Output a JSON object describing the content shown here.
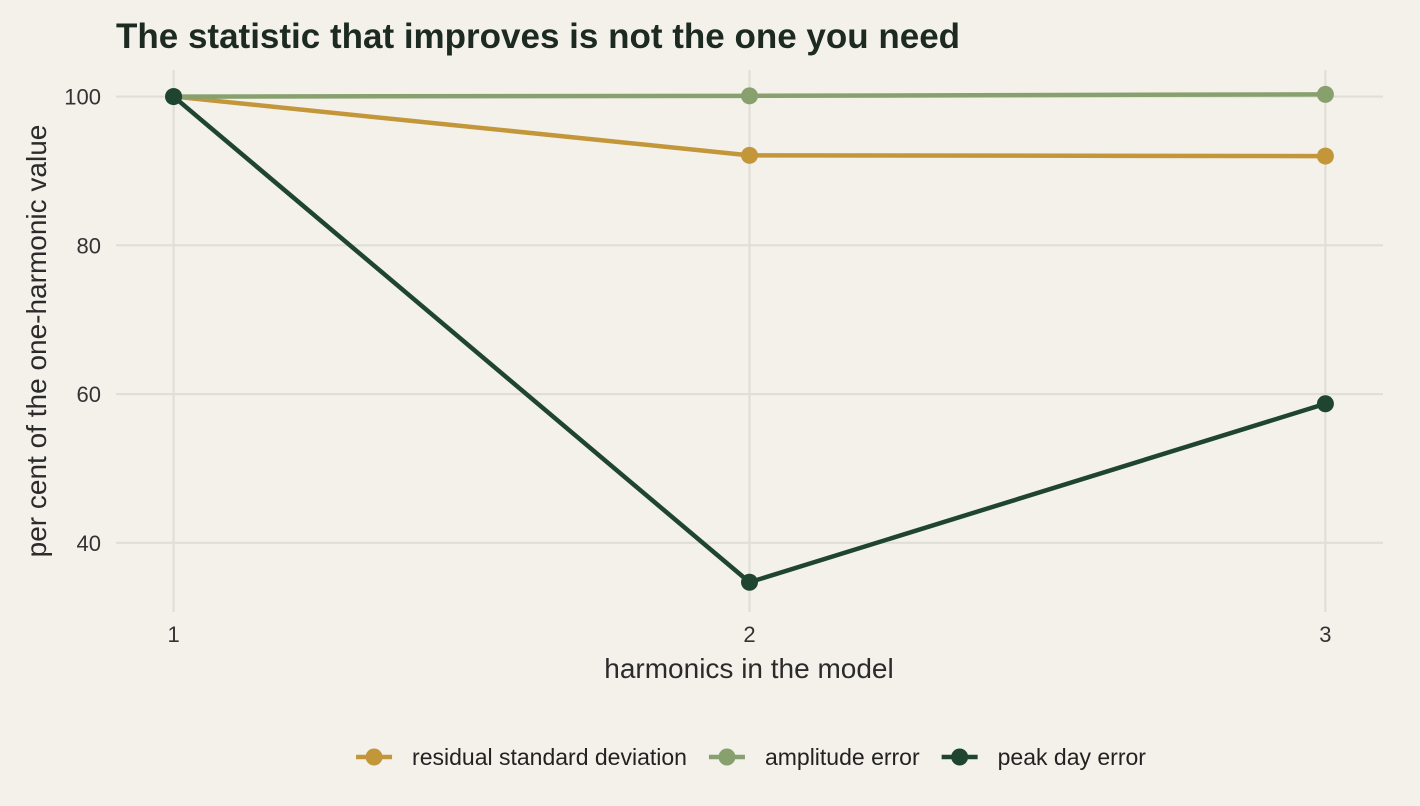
{
  "chart_data": {
    "type": "line",
    "title": "The statistic that improves is not the one you need",
    "xlabel": "harmonics in the model",
    "ylabel": "per cent of the one-harmonic value",
    "x": [
      1,
      2,
      3
    ],
    "x_ticks": [
      "1",
      "2",
      "3"
    ],
    "y_ticks": [
      40,
      60,
      80,
      100
    ],
    "ylim": [
      30.7,
      102.9
    ],
    "xlim": [
      0.9,
      3.1
    ],
    "grid": true,
    "legend_position": "bottom",
    "series": [
      {
        "name": "residual standard deviation",
        "color": "#c4963a",
        "values": [
          100,
          92.1,
          92.0
        ]
      },
      {
        "name": "amplitude error",
        "color": "#87a06e",
        "values": [
          100,
          100.1,
          100.3
        ]
      },
      {
        "name": "peak day error",
        "color": "#1f4530",
        "values": [
          100,
          34.7,
          58.7
        ]
      }
    ]
  }
}
